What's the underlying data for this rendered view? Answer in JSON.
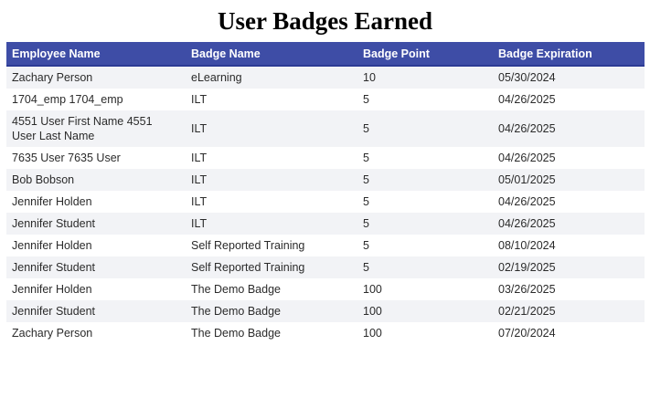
{
  "page": {
    "title": "User Badges Earned"
  },
  "colors": {
    "header_bg": "#3E4DA6",
    "header_border": "#2C3A94",
    "header_text": "#FFFFFF",
    "stripe": "#F2F3F6",
    "body_text": "#2B2B2B"
  },
  "table": {
    "columns": [
      {
        "label": "Employee Name"
      },
      {
        "label": "Badge Name"
      },
      {
        "label": "Badge Point"
      },
      {
        "label": "Badge Expiration"
      }
    ],
    "rows": [
      [
        "Zachary Person",
        "eLearning",
        "10",
        "05/30/2024"
      ],
      [
        "1704_emp 1704_emp",
        "ILT",
        "5",
        "04/26/2025"
      ],
      [
        "4551 User First Name 4551 User Last Name",
        "ILT",
        "5",
        "04/26/2025"
      ],
      [
        "7635 User 7635 User",
        "ILT",
        "5",
        "04/26/2025"
      ],
      [
        "Bob Bobson",
        "ILT",
        "5",
        "05/01/2025"
      ],
      [
        "Jennifer Holden",
        "ILT",
        "5",
        "04/26/2025"
      ],
      [
        "Jennifer Student",
        "ILT",
        "5",
        "04/26/2025"
      ],
      [
        "Jennifer Holden",
        "Self Reported Training",
        "5",
        "08/10/2024"
      ],
      [
        "Jennifer Student",
        "Self Reported Training",
        "5",
        "02/19/2025"
      ],
      [
        "Jennifer Holden",
        "The Demo Badge",
        "100",
        "03/26/2025"
      ],
      [
        "Jennifer Student",
        "The Demo Badge",
        "100",
        "02/21/2025"
      ],
      [
        "Zachary Person",
        "The Demo Badge",
        "100",
        "07/20/2024"
      ]
    ]
  }
}
